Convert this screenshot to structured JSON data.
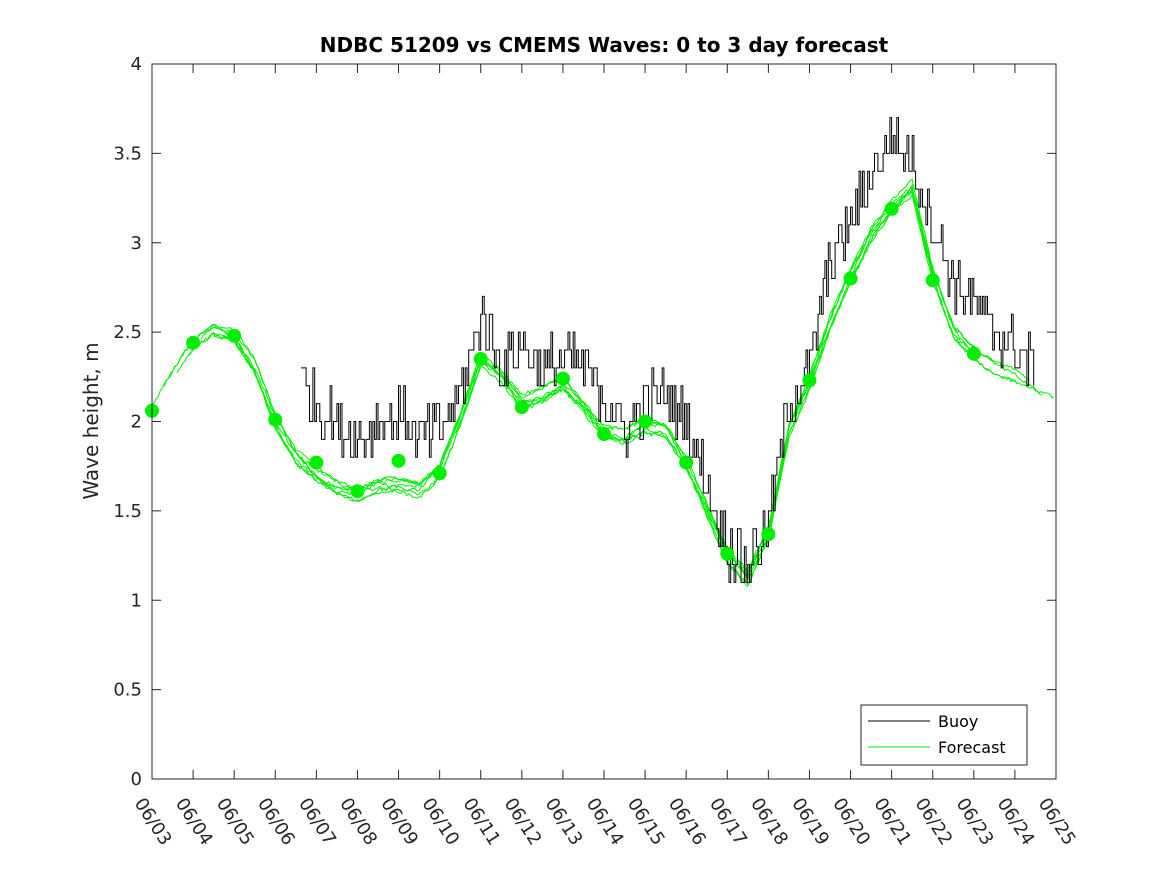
{
  "chart_data": {
    "type": "line",
    "title": "NDBC 51209 vs CMEMS Waves: 0 to 3 day forecast",
    "xlabel": "",
    "ylabel": "Wave height, m",
    "xlim": [
      "06/03",
      "06/25"
    ],
    "ylim": [
      0,
      4
    ],
    "x_ticks": [
      "06/03",
      "06/04",
      "06/05",
      "06/06",
      "06/07",
      "06/08",
      "06/09",
      "06/10",
      "06/11",
      "06/12",
      "06/13",
      "06/14",
      "06/15",
      "06/16",
      "06/17",
      "06/18",
      "06/19",
      "06/20",
      "06/21",
      "06/22",
      "06/23",
      "06/24",
      "06/25"
    ],
    "y_ticks": [
      0,
      0.5,
      1,
      1.5,
      2,
      2.5,
      3,
      3.5,
      4
    ],
    "y_tick_labels": [
      "0",
      "0.5",
      "1",
      "1.5",
      "2",
      "2.5",
      "3",
      "3.5",
      "4"
    ],
    "grid": false,
    "legend": {
      "position": "bottom-right",
      "entries": [
        "Buoy",
        "Forecast"
      ]
    },
    "colors": {
      "buoy": "#000000",
      "forecast": "#00ee00",
      "axes": "#262626"
    },
    "series": [
      {
        "name": "Buoy",
        "x": [
          "06/06 15:00",
          "06/07 00:00",
          "06/07 12:00",
          "06/08 00:00",
          "06/08 12:00",
          "06/09 00:00",
          "06/09 12:00",
          "06/10 00:00",
          "06/10 12:00",
          "06/11 00:00",
          "06/11 12:00",
          "06/12 00:00",
          "06/12 12:00",
          "06/13 00:00",
          "06/13 12:00",
          "06/14 00:00",
          "06/14 12:00",
          "06/15 00:00",
          "06/15 12:00",
          "06/16 00:00",
          "06/16 12:00",
          "06/17 00:00",
          "06/17 12:00",
          "06/18 00:00",
          "06/18 12:00",
          "06/19 00:00",
          "06/19 12:00",
          "06/20 00:00",
          "06/20 12:00",
          "06/21 00:00",
          "06/21 12:00",
          "06/22 00:00",
          "06/22 12:00",
          "06/23 00:00",
          "06/23 12:00",
          "06/24 00:00",
          "06/24 12:00"
        ],
        "values": [
          2.25,
          2.1,
          2.0,
          1.9,
          2.0,
          2.05,
          1.9,
          1.95,
          2.15,
          2.6,
          2.3,
          2.45,
          2.3,
          2.35,
          2.3,
          2.15,
          1.95,
          2.1,
          2.15,
          2.0,
          1.65,
          1.3,
          1.2,
          1.45,
          2.1,
          2.3,
          2.9,
          3.1,
          3.4,
          3.6,
          3.45,
          3.1,
          2.8,
          2.65,
          2.5,
          2.4,
          2.3
        ],
        "noise_amplitude": 0.15
      },
      {
        "name": "Forecast",
        "x": [
          "06/03 00:00",
          "06/03 12:00",
          "06/04 00:00",
          "06/04 12:00",
          "06/05 00:00",
          "06/05 12:00",
          "06/06 00:00",
          "06/06 12:00",
          "06/07 00:00",
          "06/07 12:00",
          "06/08 00:00",
          "06/08 12:00",
          "06/09 00:00",
          "06/09 12:00",
          "06/10 00:00",
          "06/10 12:00",
          "06/11 00:00",
          "06/11 12:00",
          "06/12 00:00",
          "06/12 12:00",
          "06/13 00:00",
          "06/13 12:00",
          "06/14 00:00",
          "06/14 12:00",
          "06/15 00:00",
          "06/15 12:00",
          "06/16 00:00",
          "06/16 12:00",
          "06/17 00:00",
          "06/17 12:00",
          "06/18 00:00",
          "06/18 12:00",
          "06/19 00:00",
          "06/19 12:00",
          "06/20 00:00",
          "06/20 12:00",
          "06/21 00:00",
          "06/21 12:00",
          "06/22 00:00",
          "06/22 12:00",
          "06/23 00:00",
          "06/23 12:00",
          "06/24 00:00",
          "06/24 12:00",
          "06/25 00:00"
        ],
        "values": [
          2.05,
          2.25,
          2.43,
          2.52,
          2.48,
          2.3,
          2.0,
          1.8,
          1.7,
          1.63,
          1.6,
          1.65,
          1.65,
          1.62,
          1.72,
          2.0,
          2.33,
          2.25,
          2.1,
          2.15,
          2.22,
          2.1,
          1.95,
          1.92,
          1.98,
          1.95,
          1.75,
          1.5,
          1.25,
          1.12,
          1.37,
          1.95,
          2.22,
          2.55,
          2.82,
          3.05,
          3.2,
          3.3,
          2.82,
          2.5,
          2.38,
          2.3,
          2.25,
          2.18,
          2.12
        ],
        "spread": 0.1
      }
    ],
    "markers": {
      "series": "Forecast",
      "x": [
        "06/03",
        "06/04",
        "06/05",
        "06/06",
        "06/07",
        "06/08",
        "06/09",
        "06/10",
        "06/11",
        "06/12",
        "06/13",
        "06/14",
        "06/15",
        "06/16",
        "06/17",
        "06/18",
        "06/19",
        "06/20",
        "06/21",
        "06/22",
        "06/23"
      ],
      "values": [
        2.06,
        2.44,
        2.48,
        2.01,
        1.77,
        1.61,
        1.78,
        1.71,
        2.35,
        2.08,
        2.24,
        1.93,
        2.0,
        1.77,
        1.26,
        1.37,
        2.23,
        2.8,
        3.19,
        2.79,
        2.38
      ]
    }
  }
}
